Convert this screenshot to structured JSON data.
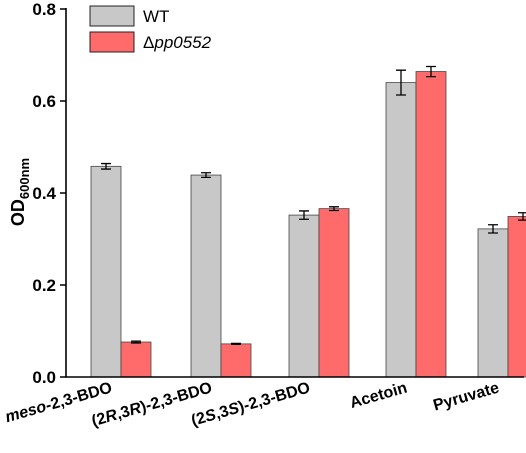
{
  "chart_data": {
    "type": "bar",
    "ylabel": "OD",
    "ylabel_sub": "600nm",
    "ylim": [
      0,
      0.8
    ],
    "yticks": [
      "0.0",
      "0.2",
      "0.4",
      "0.6",
      "0.8"
    ],
    "categories": [
      {
        "prefix": "meso",
        "rest": "-2,3-BDO"
      },
      {
        "prefix": "(2",
        "i1": "R",
        "mid": ",3",
        "i2": "R",
        "rest": ")-2,3-BDO"
      },
      {
        "prefix": "(2",
        "i1": "S",
        "mid": ",3",
        "i2": "S",
        "rest": ")-2,3-BDO"
      },
      {
        "prefix": "",
        "rest": "Acetoin"
      },
      {
        "prefix": "",
        "rest": "Pyruvate"
      }
    ],
    "series": [
      {
        "name": "WT",
        "color": "#c8c8c8",
        "values": [
          0.458,
          0.439,
          0.352,
          0.64,
          0.322
        ],
        "errors": [
          0.006,
          0.005,
          0.009,
          0.027,
          0.009
        ]
      },
      {
        "name": "Δpp0552",
        "name_prefix": "Δ",
        "name_italic": "pp0552",
        "color": "#ff6b6b",
        "values": [
          0.076,
          0.072,
          0.366,
          0.664,
          0.349
        ],
        "errors": [
          0.002,
          0.001,
          0.004,
          0.011,
          0.008
        ]
      }
    ],
    "legend": "top-left",
    "grid": false
  }
}
